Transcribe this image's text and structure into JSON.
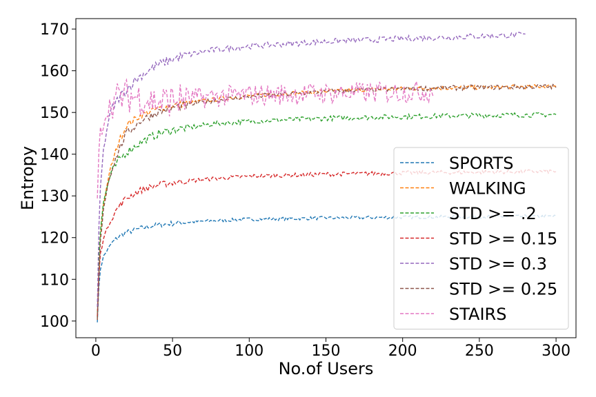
{
  "chart_data": {
    "type": "line",
    "title": "",
    "xlabel": "No.of Users",
    "ylabel": "Entropy",
    "xlim": [
      -13,
      313
    ],
    "ylim": [
      96,
      172.5
    ],
    "xticks": [
      0,
      50,
      100,
      150,
      200,
      250,
      300
    ],
    "yticks": [
      100,
      110,
      120,
      130,
      140,
      150,
      160,
      170
    ],
    "grid": false,
    "line_style": "dashed",
    "legend_position": "lower-right",
    "series": [
      {
        "name": "SPORTS",
        "color": "#1f77b4",
        "x_max": 300,
        "x": [
          1,
          2,
          3,
          5,
          10,
          15,
          20,
          30,
          40,
          50,
          60,
          80,
          100,
          150,
          200,
          250,
          300
        ],
        "y": [
          100,
          108,
          112.5,
          115.5,
          118.5,
          120.3,
          121.2,
          122.3,
          123,
          123.4,
          123.7,
          124.1,
          124.4,
          124.7,
          124.9,
          125,
          125.1
        ],
        "noise": 0.4
      },
      {
        "name": "WALKING",
        "color": "#ff7f0e",
        "x_max": 300,
        "x": [
          1,
          2,
          3,
          5,
          8,
          10,
          15,
          20,
          30,
          40,
          50,
          75,
          100,
          150,
          200,
          250,
          300
        ],
        "y": [
          100,
          112,
          120,
          128,
          134,
          137,
          143,
          147,
          149.5,
          150.8,
          151.7,
          153,
          154,
          155.1,
          155.7,
          156,
          156.3
        ],
        "noise": 0.5
      },
      {
        "name": "STD >= .2",
        "color": "#2ca02c",
        "x_max": 300,
        "x": [
          1,
          2,
          3,
          5,
          8,
          10,
          15,
          20,
          30,
          40,
          50,
          75,
          100,
          150,
          200,
          250,
          300
        ],
        "y": [
          101,
          115,
          122,
          128.5,
          133,
          135.5,
          138.5,
          140.5,
          143,
          144.8,
          145.8,
          147.2,
          147.9,
          148.6,
          149,
          149.3,
          149.5
        ],
        "noise": 0.6
      },
      {
        "name": "STD >= 0.15",
        "color": "#d62728",
        "x_max": 300,
        "x": [
          1,
          2,
          3,
          5,
          10,
          15,
          20,
          30,
          40,
          50,
          75,
          100,
          150,
          200,
          250,
          300
        ],
        "y": [
          101,
          111,
          116,
          120,
          124.5,
          127.5,
          129.5,
          131.5,
          132.5,
          133.2,
          134.1,
          134.7,
          135.2,
          135.5,
          135.7,
          135.9
        ],
        "noise": 0.5
      },
      {
        "name": "STD >= 0.3",
        "color": "#9467bd",
        "x_max": 280,
        "x": [
          1,
          2,
          3,
          5,
          8,
          10,
          15,
          20,
          25,
          30,
          40,
          50,
          60,
          75,
          100,
          150,
          200,
          250,
          280
        ],
        "y": [
          103,
          122,
          132,
          141,
          147.5,
          150.5,
          153.5,
          155.5,
          157.5,
          159,
          161.3,
          162.8,
          163.8,
          164.9,
          165.9,
          167,
          167.7,
          168.3,
          168.6
        ],
        "noise": 0.7
      },
      {
        "name": "STD >= 0.25",
        "color": "#8c564b",
        "x_max": 300,
        "x": [
          1,
          2,
          3,
          5,
          8,
          10,
          15,
          20,
          30,
          40,
          50,
          75,
          100,
          150,
          200,
          250,
          300
        ],
        "y": [
          100,
          111,
          119,
          127,
          133,
          136,
          141,
          145,
          148.2,
          150,
          151.2,
          152.8,
          153.8,
          155,
          155.7,
          156,
          156.2
        ],
        "noise": 0.6
      },
      {
        "name": "STAIRS",
        "color": "#e377c2",
        "x_max": 220,
        "x": [
          1,
          2,
          3,
          5,
          8,
          10,
          15,
          20,
          30,
          40,
          50,
          75,
          100,
          150,
          200,
          220
        ],
        "y": [
          128,
          140,
          145,
          148,
          151,
          152.5,
          153.5,
          154,
          153.5,
          152.5,
          153,
          153.7,
          154.2,
          154.6,
          154.9,
          155
        ],
        "noise": 2.6
      }
    ]
  }
}
